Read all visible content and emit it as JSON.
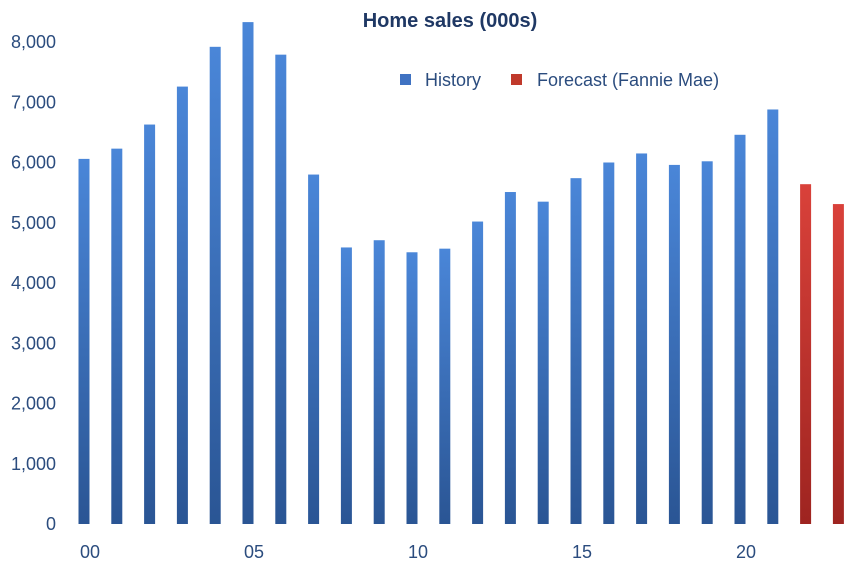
{
  "chart_data": {
    "type": "bar",
    "title": "Home sales (000s)",
    "xlabel": "",
    "ylabel": "",
    "ylim": [
      0,
      8000
    ],
    "yticks": [
      0,
      1000,
      2000,
      3000,
      4000,
      5000,
      6000,
      7000,
      8000
    ],
    "ytick_labels": [
      "0",
      "1,000",
      "2,000",
      "3,000",
      "4,000",
      "5,000",
      "6,000",
      "7,000",
      "8,000"
    ],
    "xtick_labels": [
      "00",
      "05",
      "10",
      "15",
      "20"
    ],
    "xtick_years": [
      2000,
      2005,
      2010,
      2015,
      2020
    ],
    "legend_position": "top-right",
    "grid": false,
    "series": [
      {
        "name": "History",
        "color": "#3f72c2",
        "x": [
          2000,
          2001,
          2002,
          2003,
          2004,
          2005,
          2006,
          2007,
          2008,
          2009,
          2010,
          2011,
          2012,
          2013,
          2014,
          2015,
          2016,
          2017,
          2018,
          2019,
          2020,
          2021
        ],
        "values": [
          6060,
          6230,
          6630,
          7260,
          7920,
          8330,
          7790,
          5800,
          4590,
          4710,
          4510,
          4570,
          5020,
          5510,
          5350,
          5740,
          6000,
          6150,
          5960,
          6020,
          6460,
          6880
        ]
      },
      {
        "name": "Forecast (Fannie Mae)",
        "color": "#c0392b",
        "x": [
          2022,
          2023
        ],
        "values": [
          5640,
          5310
        ]
      }
    ]
  }
}
